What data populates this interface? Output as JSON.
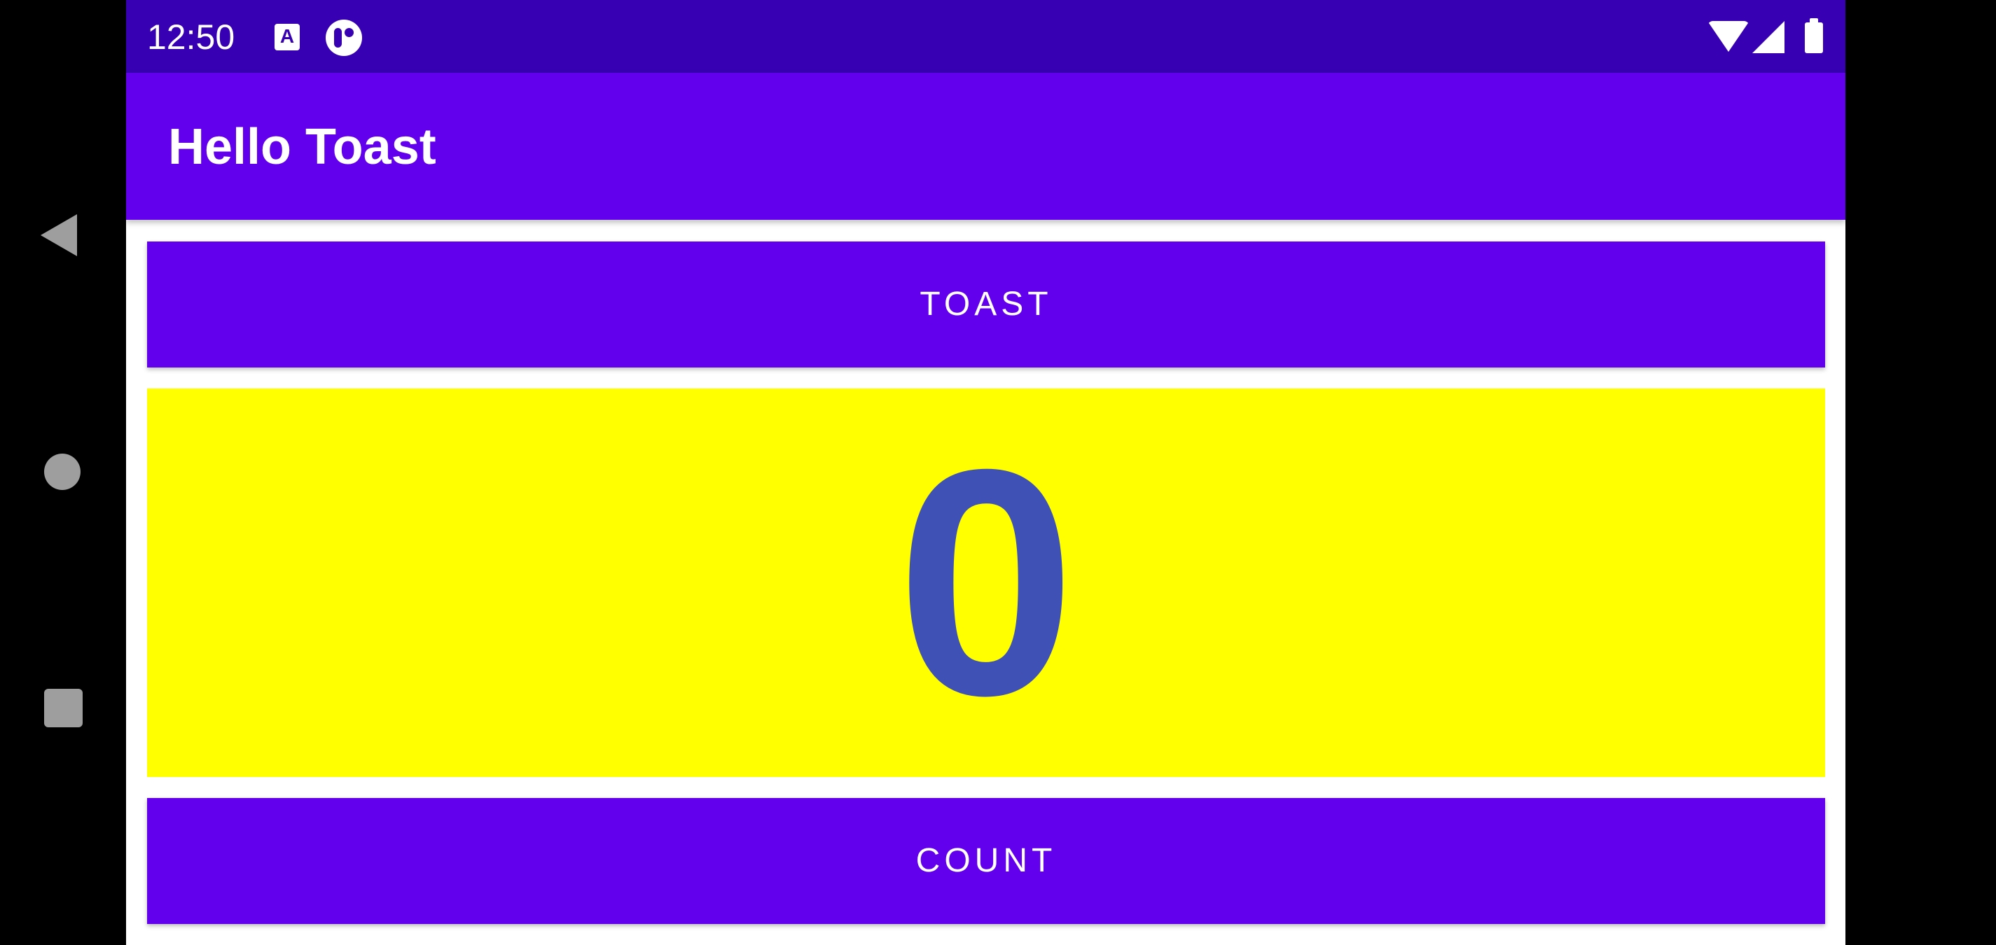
{
  "status_bar": {
    "time": "12:50",
    "icons": [
      "text-a-icon",
      "app-notification-icon",
      "wifi-icon",
      "cell-signal-icon",
      "battery-icon"
    ],
    "color": "#3700b3"
  },
  "app_bar": {
    "title": "Hello Toast",
    "color": "#6200ee"
  },
  "main": {
    "toast_button_label": "TOAST",
    "count_value": "0",
    "count_button_label": "COUNT",
    "count_background": "#ffff00",
    "count_text_color": "#3f51b5"
  },
  "nav_bar": {
    "icons": [
      "back-icon",
      "home-icon",
      "recents-icon"
    ]
  }
}
